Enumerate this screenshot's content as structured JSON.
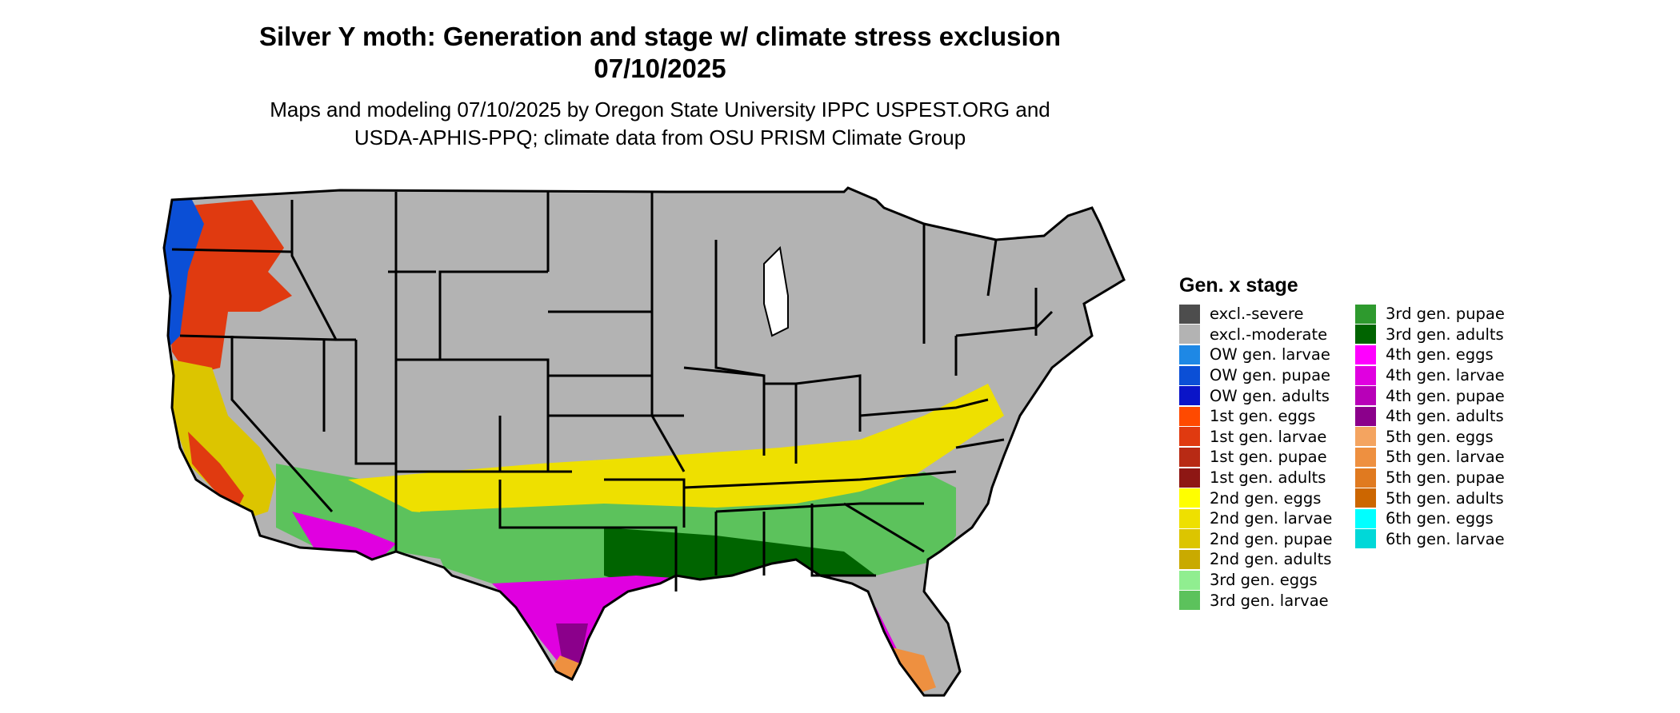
{
  "title": "Silver Y moth: Generation and stage w/ climate stress exclusion",
  "date": "07/10/2025",
  "subtitle_line1": "Maps and modeling 07/10/2025 by Oregon State University IPPC USPEST.ORG and",
  "subtitle_line2": "USDA-APHIS-PPQ; climate data from OSU PRISM Climate Group",
  "legend": {
    "title": "Gen. x stage",
    "items": [
      {
        "label": "excl.-severe",
        "color": "#4d4d4d"
      },
      {
        "label": "excl.-moderate",
        "color": "#b3b3b3"
      },
      {
        "label": "OW gen. larvae",
        "color": "#1e88e5"
      },
      {
        "label": "OW gen. pupae",
        "color": "#0b4fd6"
      },
      {
        "label": "OW gen. adults",
        "color": "#0a14c8"
      },
      {
        "label": "1st gen. eggs",
        "color": "#ff4a00"
      },
      {
        "label": "1st gen. larvae",
        "color": "#e03a10"
      },
      {
        "label": "1st gen. pupae",
        "color": "#b82a14"
      },
      {
        "label": "1st gen. adults",
        "color": "#8e1714"
      },
      {
        "label": "2nd gen. eggs",
        "color": "#ffff00"
      },
      {
        "label": "2nd gen. larvae",
        "color": "#eee000"
      },
      {
        "label": "2nd gen. pupae",
        "color": "#dcc500"
      },
      {
        "label": "2nd gen. adults",
        "color": "#c9aa00"
      },
      {
        "label": "3rd gen. eggs",
        "color": "#90ee90"
      },
      {
        "label": "3rd gen. larvae",
        "color": "#5cc25c"
      },
      {
        "label": "3rd gen. pupae",
        "color": "#2e9a2e"
      },
      {
        "label": "3rd gen. adults",
        "color": "#006400"
      },
      {
        "label": "4th gen. eggs",
        "color": "#ff00ff"
      },
      {
        "label": "4th gen. larvae",
        "color": "#e000e0"
      },
      {
        "label": "4th gen. pupae",
        "color": "#b800b8"
      },
      {
        "label": "4th gen. adults",
        "color": "#8b008b"
      },
      {
        "label": "5th gen. eggs",
        "color": "#f4a460"
      },
      {
        "label": "5th gen. larvae",
        "color": "#ee9040"
      },
      {
        "label": "5th gen. pupae",
        "color": "#e07a20"
      },
      {
        "label": "5th gen. adults",
        "color": "#cc6600"
      },
      {
        "label": "6th gen. eggs",
        "color": "#00ffff"
      },
      {
        "label": "6th gen. larvae",
        "color": "#00d8d8"
      }
    ]
  }
}
